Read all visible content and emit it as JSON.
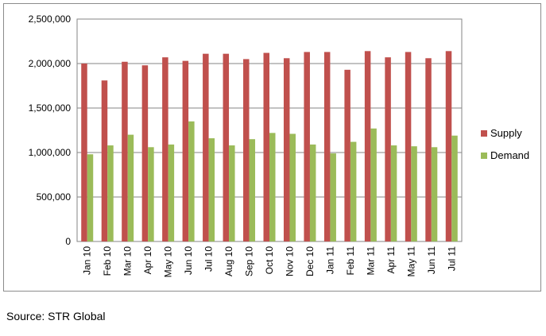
{
  "chart_data": {
    "type": "bar",
    "title": "",
    "xlabel": "",
    "ylabel": "",
    "categories": [
      "Jan 10",
      "Feb 10",
      "Mar 10",
      "Apr 10",
      "May 10",
      "Jun 10",
      "Jul 10",
      "Aug 10",
      "Sep 10",
      "Oct 10",
      "Nov 10",
      "Dec 10",
      "Jan 11",
      "Feb 11",
      "Mar 11",
      "Apr 11",
      "May 11",
      "Jun 11",
      "Jul 11"
    ],
    "series": [
      {
        "name": "Supply",
        "color": "#C0504D",
        "values": [
          2000000,
          1810000,
          2020000,
          1980000,
          2070000,
          2030000,
          2110000,
          2110000,
          2050000,
          2120000,
          2060000,
          2130000,
          2130000,
          1930000,
          2140000,
          2070000,
          2130000,
          2060000,
          2140000
        ]
      },
      {
        "name": "Demand",
        "color": "#9BBB59",
        "values": [
          980000,
          1080000,
          1200000,
          1060000,
          1090000,
          1350000,
          1160000,
          1080000,
          1150000,
          1220000,
          1210000,
          1090000,
          990000,
          1120000,
          1270000,
          1080000,
          1070000,
          1060000,
          1190000
        ]
      }
    ],
    "ylim": [
      0,
      2500000
    ],
    "yticks": [
      0,
      500000,
      1000000,
      1500000,
      2000000,
      2500000
    ],
    "ytick_labels": [
      "0",
      "500,000",
      "1,000,000",
      "1,500,000",
      "2,000,000",
      "2,500,000"
    ],
    "grid": true,
    "legend_position": "right"
  },
  "source_note": "Source: STR Global"
}
